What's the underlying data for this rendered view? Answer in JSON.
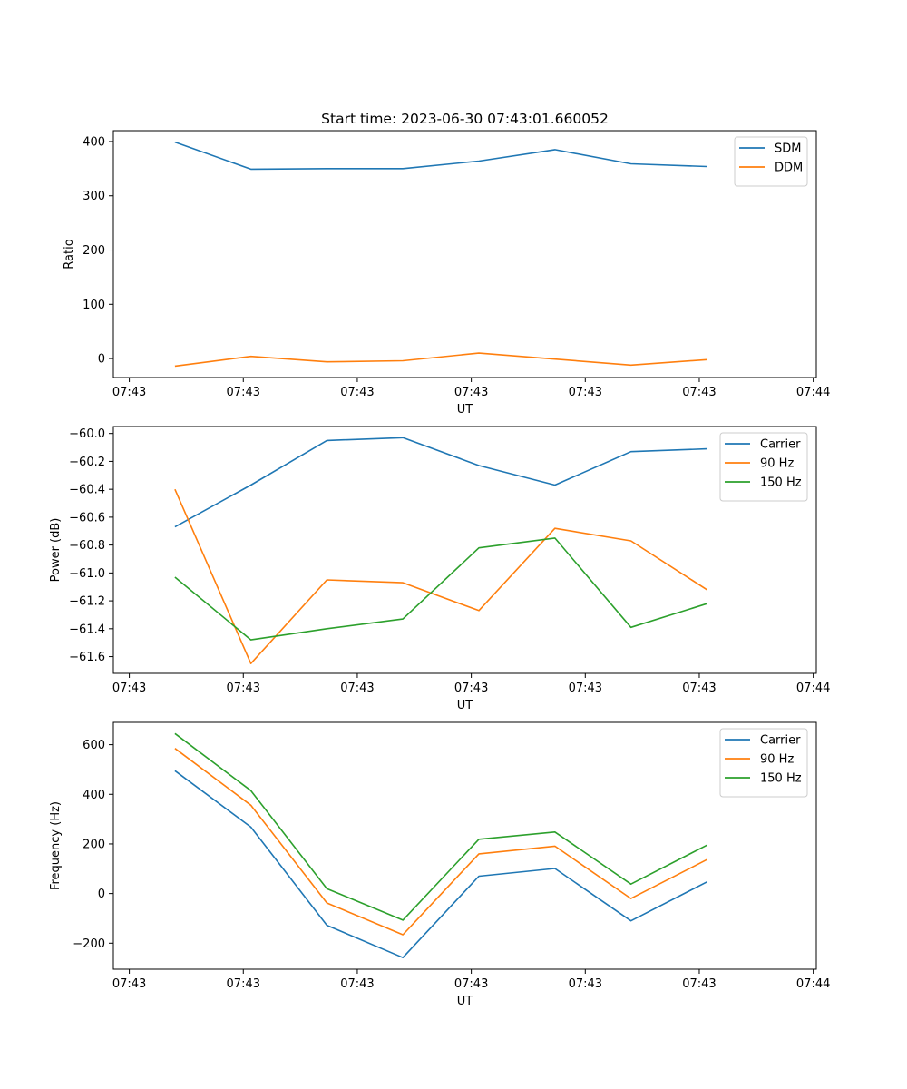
{
  "figure": {
    "title": "Start time: 2023-06-30 07:43:01.660052"
  },
  "colors": {
    "blue": "#1f77b4",
    "orange": "#ff7f0e",
    "green": "#2ca02c"
  },
  "chart_data": [
    {
      "type": "line",
      "title": "Start time: 2023-06-30 07:43:01.660052",
      "xlabel": "UT",
      "ylabel": "Ratio",
      "x": [
        1,
        2,
        3,
        4,
        5,
        6,
        7,
        8
      ],
      "xlim": [
        0.19,
        9.44
      ],
      "xticks": [
        0.4,
        1.9,
        3.4,
        4.9,
        6.4,
        7.9,
        9.4
      ],
      "xtick_labels": [
        "07:43",
        "07:43",
        "07:43",
        "07:43",
        "07:43",
        "07:43",
        "07:44"
      ],
      "ylim": [
        -35,
        420
      ],
      "yticks": [
        0,
        100,
        200,
        300,
        400
      ],
      "ytick_labels": [
        "0",
        "100",
        "200",
        "300",
        "400"
      ],
      "legend": "top-right",
      "series": [
        {
          "name": "SDM",
          "color": "#1f77b4",
          "values": [
            399,
            349,
            350,
            350,
            364,
            385,
            359,
            354
          ]
        },
        {
          "name": "DDM",
          "color": "#ff7f0e",
          "values": [
            -14,
            4,
            -6,
            -4,
            10,
            -1,
            -12,
            -2
          ]
        }
      ]
    },
    {
      "type": "line",
      "xlabel": "UT",
      "ylabel": "Power (dB)",
      "x": [
        1,
        2,
        3,
        4,
        5,
        6,
        7,
        8
      ],
      "xlim": [
        0.19,
        9.44
      ],
      "xticks": [
        0.4,
        1.9,
        3.4,
        4.9,
        6.4,
        7.9,
        9.4
      ],
      "xtick_labels": [
        "07:43",
        "07:43",
        "07:43",
        "07:43",
        "07:43",
        "07:43",
        "07:44"
      ],
      "ylim": [
        -61.72,
        -59.95
      ],
      "yticks": [
        -61.6,
        -61.4,
        -61.2,
        -61.0,
        -60.8,
        -60.6,
        -60.4,
        -60.2,
        -60.0
      ],
      "ytick_labels": [
        "−61.6",
        "−61.4",
        "−61.2",
        "−61.0",
        "−60.8",
        "−60.6",
        "−60.4",
        "−60.2",
        "−60.0"
      ],
      "legend": "top-right",
      "series": [
        {
          "name": "Carrier",
          "color": "#1f77b4",
          "values": [
            -60.67,
            -60.37,
            -60.05,
            -60.03,
            -60.23,
            -60.37,
            -60.13,
            -60.11
          ]
        },
        {
          "name": "90 Hz",
          "color": "#ff7f0e",
          "values": [
            -60.4,
            -61.65,
            -61.05,
            -61.07,
            -61.27,
            -60.68,
            -60.77,
            -61.12
          ]
        },
        {
          "name": "150 Hz",
          "color": "#2ca02c",
          "values": [
            -61.03,
            -61.48,
            -61.4,
            -61.33,
            -60.82,
            -60.75,
            -61.39,
            -61.22
          ]
        }
      ]
    },
    {
      "type": "line",
      "xlabel": "UT",
      "ylabel": "Frequency (Hz)",
      "x": [
        1,
        2,
        3,
        4,
        5,
        6,
        7,
        8
      ],
      "xlim": [
        0.19,
        9.44
      ],
      "xticks": [
        0.4,
        1.9,
        3.4,
        4.9,
        6.4,
        7.9,
        9.4
      ],
      "xtick_labels": [
        "07:43",
        "07:43",
        "07:43",
        "07:43",
        "07:43",
        "07:43",
        "07:44"
      ],
      "ylim": [
        -305,
        690
      ],
      "yticks": [
        -200,
        0,
        200,
        400,
        600
      ],
      "ytick_labels": [
        "−200",
        "0",
        "200",
        "400",
        "600"
      ],
      "legend": "top-right",
      "series": [
        {
          "name": "Carrier",
          "color": "#1f77b4",
          "values": [
            495,
            268,
            -128,
            -258,
            70,
            101,
            -110,
            47
          ]
        },
        {
          "name": "90 Hz",
          "color": "#ff7f0e",
          "values": [
            585,
            356,
            -38,
            -166,
            160,
            191,
            -20,
            137
          ]
        },
        {
          "name": "150 Hz",
          "color": "#2ca02c",
          "values": [
            645,
            415,
            20,
            -107,
            219,
            248,
            38,
            195
          ]
        }
      ]
    }
  ]
}
